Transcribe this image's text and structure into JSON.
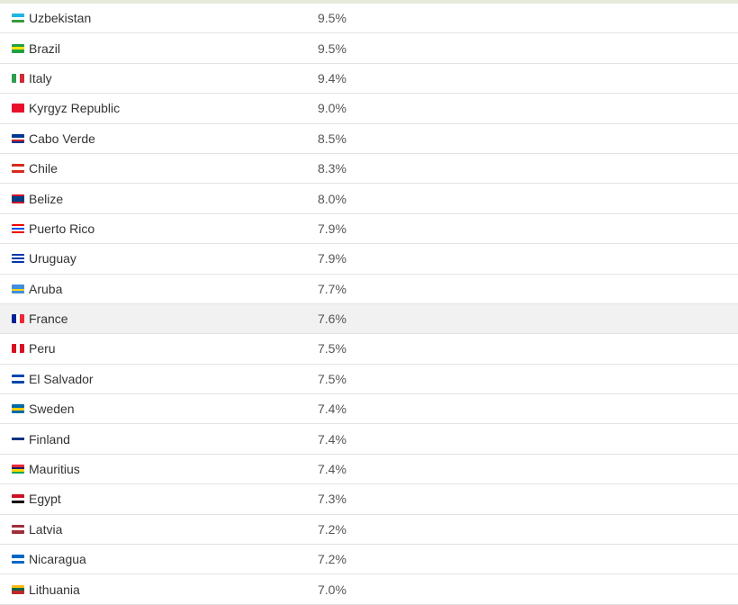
{
  "highlight_color": "#f1f1f1",
  "rows": [
    {
      "country": "Uzbekistan",
      "value": "9.5%",
      "flag": {
        "dir": "h",
        "colors": [
          "#1eb5e0",
          "#ffffff",
          "#3b9a3b"
        ]
      }
    },
    {
      "country": "Brazil",
      "value": "9.5%",
      "flag": {
        "dir": "h",
        "colors": [
          "#229e45",
          "#f8e509",
          "#229e45"
        ]
      }
    },
    {
      "country": "Italy",
      "value": "9.4%",
      "flag": {
        "dir": "v",
        "colors": [
          "#2e9e4e",
          "#ffffff",
          "#ce2b37"
        ]
      }
    },
    {
      "country": "Kyrgyz Republic",
      "value": "9.0%",
      "flag": {
        "dir": "h",
        "colors": [
          "#e8112d"
        ]
      }
    },
    {
      "country": "Cabo Verde",
      "value": "8.5%",
      "flag": {
        "dir": "h",
        "colors": [
          "#003893",
          "#003893",
          "#ffffff",
          "#cf2027",
          "#003893"
        ]
      }
    },
    {
      "country": "Chile",
      "value": "8.3%",
      "flag": {
        "dir": "h",
        "colors": [
          "#d52b1e",
          "#ffffff",
          "#d52b1e"
        ]
      }
    },
    {
      "country": "Belize",
      "value": "8.0%",
      "flag": {
        "dir": "h",
        "colors": [
          "#ce1126",
          "#003f87",
          "#003f87",
          "#003f87",
          "#ce1126"
        ]
      }
    },
    {
      "country": "Puerto Rico",
      "value": "7.9%",
      "flag": {
        "dir": "h",
        "colors": [
          "#ed0000",
          "#ffffff",
          "#0050f0",
          "#ffffff",
          "#ed0000"
        ]
      }
    },
    {
      "country": "Uruguay",
      "value": "7.9%",
      "flag": {
        "dir": "h",
        "colors": [
          "#0038a8",
          "#ffffff",
          "#0038a8",
          "#ffffff",
          "#0038a8"
        ]
      }
    },
    {
      "country": "Aruba",
      "value": "7.7%",
      "flag": {
        "dir": "h",
        "colors": [
          "#418fde",
          "#418fde",
          "#f9d616",
          "#418fde"
        ]
      }
    },
    {
      "country": "France",
      "value": "7.6%",
      "highlighted": true,
      "flag": {
        "dir": "v",
        "colors": [
          "#002395",
          "#ffffff",
          "#ed2939"
        ]
      }
    },
    {
      "country": "Peru",
      "value": "7.5%",
      "flag": {
        "dir": "v",
        "colors": [
          "#d91023",
          "#ffffff",
          "#d91023"
        ]
      }
    },
    {
      "country": "El Salvador",
      "value": "7.5%",
      "flag": {
        "dir": "h",
        "colors": [
          "#0047ab",
          "#ffffff",
          "#0047ab"
        ]
      }
    },
    {
      "country": "Sweden",
      "value": "7.4%",
      "flag": {
        "dir": "h",
        "colors": [
          "#006aa7",
          "#fecc00",
          "#006aa7"
        ]
      }
    },
    {
      "country": "Finland",
      "value": "7.4%",
      "flag": {
        "dir": "h",
        "colors": [
          "#ffffff",
          "#003580",
          "#ffffff"
        ]
      }
    },
    {
      "country": "Mauritius",
      "value": "7.4%",
      "flag": {
        "dir": "h",
        "colors": [
          "#ea2839",
          "#1a206d",
          "#ffd500",
          "#00a551"
        ]
      }
    },
    {
      "country": "Egypt",
      "value": "7.3%",
      "flag": {
        "dir": "h",
        "colors": [
          "#ce1126",
          "#ffffff",
          "#000000"
        ]
      }
    },
    {
      "country": "Latvia",
      "value": "7.2%",
      "flag": {
        "dir": "h",
        "colors": [
          "#9e3039",
          "#ffffff",
          "#9e3039"
        ]
      }
    },
    {
      "country": "Nicaragua",
      "value": "7.2%",
      "flag": {
        "dir": "h",
        "colors": [
          "#0067c6",
          "#ffffff",
          "#0067c6"
        ]
      }
    },
    {
      "country": "Lithuania",
      "value": "7.0%",
      "flag": {
        "dir": "h",
        "colors": [
          "#fdb913",
          "#006a44",
          "#c1272d"
        ]
      }
    }
  ]
}
